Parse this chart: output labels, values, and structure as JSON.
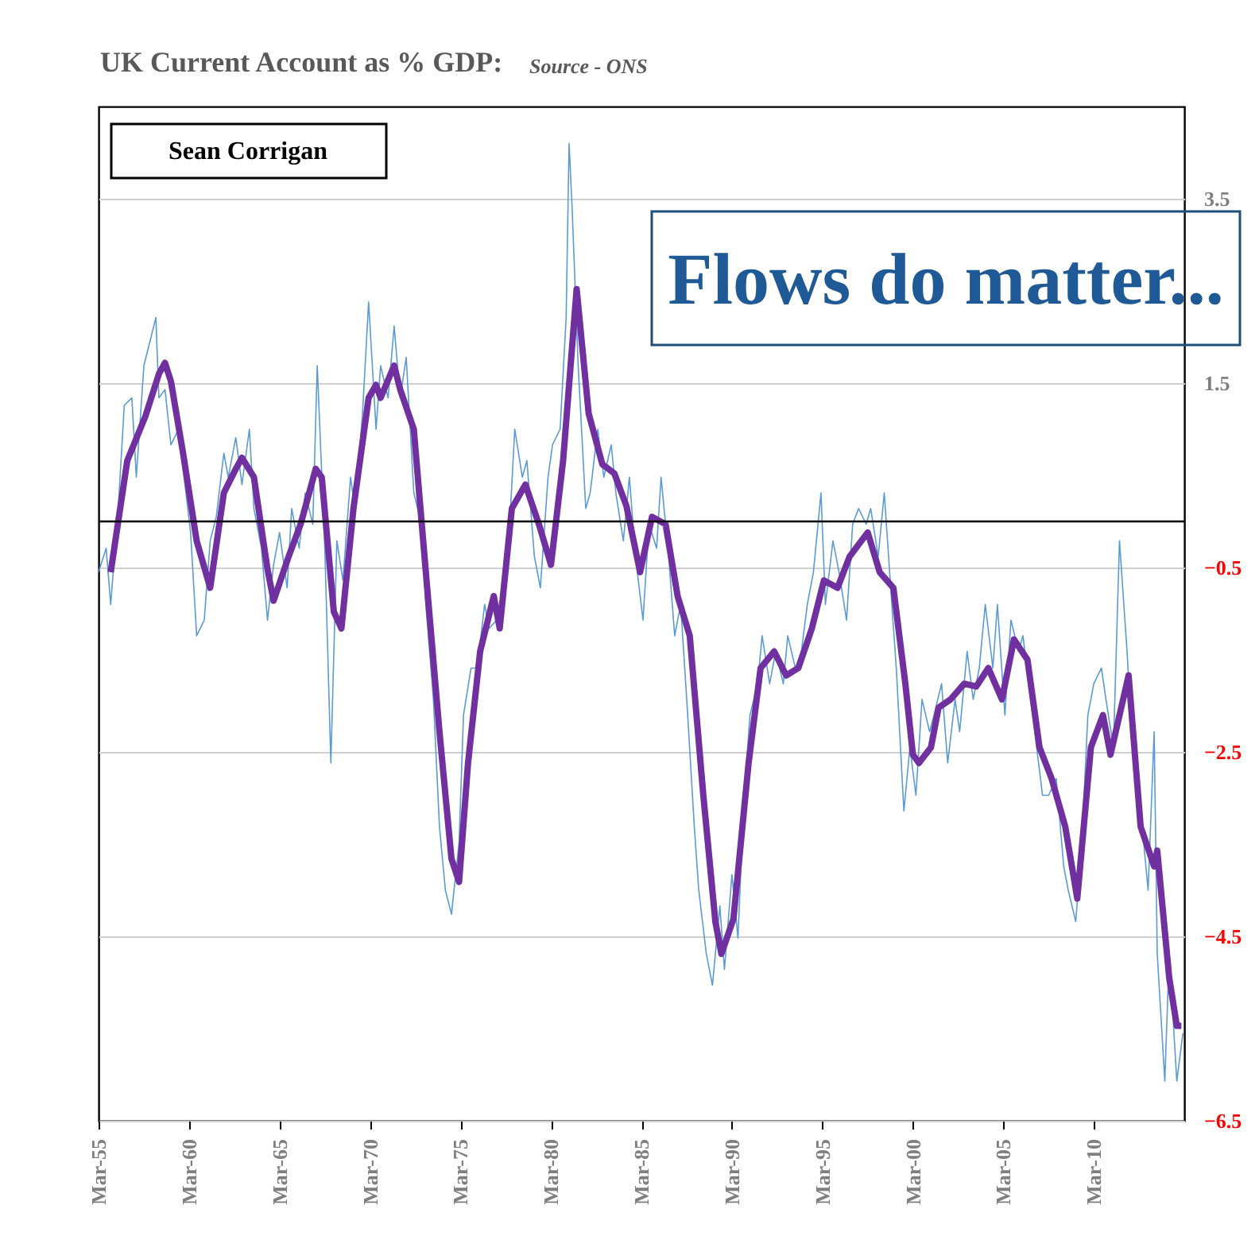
{
  "chart_data": {
    "type": "line",
    "title": "UK Current Account as % GDP:",
    "annotations": [
      "Source - ONS",
      "Sean Corrigan",
      "Flows do matter..."
    ],
    "xlim": [
      "1955-03",
      "2015-03"
    ],
    "xticks": [
      {
        "value": "1955-03",
        "label": "Mar-55"
      },
      {
        "value": "1960-03",
        "label": "Mar-60"
      },
      {
        "value": "1965-03",
        "label": "Mar-65"
      },
      {
        "value": "1970-03",
        "label": "Mar-70"
      },
      {
        "value": "1975-03",
        "label": "Mar-75"
      },
      {
        "value": "1980-03",
        "label": "Mar-80"
      },
      {
        "value": "1985-03",
        "label": "Mar-85"
      },
      {
        "value": "1990-03",
        "label": "Mar-90"
      },
      {
        "value": "1995-03",
        "label": "Mar-95"
      },
      {
        "value": "2000-03",
        "label": "Mar-00"
      },
      {
        "value": "2005-03",
        "label": "Mar-05"
      },
      {
        "value": "2010-03",
        "label": "Mar-10"
      }
    ],
    "ylim": [
      -6.5,
      4.5
    ],
    "yticks": [
      3.5,
      1.5,
      -0.5,
      -2.5,
      -4.5,
      -6.5
    ],
    "grid": "y",
    "ref_lines": [
      {
        "axis": "y",
        "value": 0,
        "color": "#000000"
      }
    ],
    "series": [
      {
        "color": "#5b9bd5",
        "x": [
          "1955-03",
          "1955-08",
          "1955-11",
          "1956-04",
          "1956-08",
          "1957-01",
          "1957-04",
          "1957-09",
          "1958-01",
          "1958-05",
          "1958-07",
          "1958-11",
          "1959-03",
          "1959-08",
          "1959-11",
          "1960-04",
          "1960-08",
          "1961-01",
          "1961-05",
          "1961-09",
          "1962-02",
          "1962-05",
          "1962-10",
          "1963-02",
          "1963-07",
          "1963-10",
          "1964-03",
          "1964-07",
          "1964-11",
          "1965-03",
          "1965-08",
          "1965-11",
          "1966-04",
          "1966-08",
          "1967-01",
          "1967-04",
          "1967-09",
          "1968-01",
          "1968-05",
          "1968-09",
          "1969-02",
          "1969-05",
          "1969-10",
          "1970-02",
          "1970-07",
          "1970-10",
          "1971-03",
          "1971-07",
          "1971-11",
          "1972-03",
          "1972-08",
          "1973-01",
          "1973-04",
          "1973-09",
          "1974-01",
          "1974-05",
          "1974-09",
          "1975-02",
          "1975-05",
          "1975-10",
          "1976-02",
          "1976-07",
          "1976-10",
          "1977-03",
          "1977-07",
          "1977-11",
          "1978-03",
          "1978-08",
          "1978-11",
          "1979-04",
          "1979-08",
          "1980-01",
          "1980-04",
          "1980-09",
          "1981-01",
          "1981-03",
          "1981-05",
          "1981-09",
          "1982-02",
          "1982-05",
          "1982-10",
          "1983-02",
          "1983-07",
          "1983-10",
          "1984-03",
          "1984-07",
          "1984-11",
          "1985-04",
          "1985-08",
          "1986-01",
          "1986-04",
          "1986-09",
          "1987-01",
          "1987-05",
          "1987-09",
          "1988-02",
          "1988-05",
          "1988-10",
          "1989-02",
          "1989-07",
          "1989-10",
          "1990-03",
          "1990-07",
          "1990-11",
          "1991-03",
          "1991-08",
          "1991-11",
          "1992-04",
          "1992-08",
          "1993-01",
          "1993-04",
          "1993-09",
          "1994-01",
          "1994-05",
          "1994-09",
          "1995-02",
          "1995-05",
          "1995-10",
          "1996-02",
          "1996-07",
          "1996-11",
          "1997-03",
          "1997-08",
          "1997-11",
          "1998-04",
          "1998-08",
          "1999-01",
          "1999-04",
          "1999-09",
          "2000-01",
          "2000-05",
          "2000-09",
          "2001-02",
          "2001-05",
          "2001-10",
          "2002-02",
          "2002-07",
          "2002-10",
          "2003-03",
          "2003-07",
          "2003-11",
          "2004-03",
          "2004-08",
          "2004-11",
          "2005-04",
          "2005-08",
          "2006-01",
          "2006-04",
          "2006-09",
          "2007-01",
          "2007-05",
          "2007-09",
          "2008-02",
          "2008-07",
          "2008-10",
          "2009-03",
          "2009-07",
          "2009-11",
          "2010-03",
          "2010-08",
          "2010-11",
          "2011-04",
          "2011-08",
          "2012-01",
          "2012-04",
          "2012-09",
          "2013-01",
          "2013-03",
          "2013-07",
          "2013-09",
          "2014-02",
          "2014-05",
          "2014-10",
          "2015-02"
        ],
        "values": [
          -0.55,
          -0.29,
          -0.9,
          0.14,
          1.26,
          1.34,
          0.48,
          1.69,
          1.95,
          2.21,
          1.34,
          1.43,
          0.83,
          1.0,
          0.57,
          -0.12,
          -1.24,
          -1.07,
          -0.21,
          0.05,
          0.74,
          0.48,
          0.91,
          0.4,
          1.0,
          0.14,
          -0.29,
          -1.07,
          -0.47,
          -0.12,
          -0.72,
          0.14,
          -0.29,
          0.31,
          -0.03,
          1.69,
          -0.29,
          -2.62,
          -0.21,
          -0.64,
          0.48,
          0.14,
          1.17,
          2.38,
          1.0,
          1.69,
          1.34,
          2.12,
          1.34,
          1.78,
          0.31,
          -0.03,
          -0.9,
          -1.93,
          -3.31,
          -4.0,
          -4.26,
          -3.48,
          -2.1,
          -1.59,
          -1.59,
          -0.9,
          -1.16,
          -1.07,
          -0.72,
          -0.21,
          1.0,
          0.48,
          0.66,
          -0.38,
          -0.72,
          0.48,
          0.83,
          1.0,
          2.21,
          4.1,
          3.41,
          1.69,
          0.14,
          0.31,
          1.0,
          0.48,
          0.83,
          0.31,
          -0.21,
          0.48,
          -0.38,
          -1.07,
          -0.03,
          -0.29,
          0.48,
          -0.38,
          -1.24,
          -0.9,
          -1.93,
          -3.31,
          -4.0,
          -4.69,
          -5.03,
          -4.17,
          -4.86,
          -3.83,
          -4.52,
          -2.97,
          -2.1,
          -1.76,
          -1.24,
          -1.76,
          -1.41,
          -1.76,
          -1.24,
          -1.59,
          -1.41,
          -0.9,
          -0.55,
          0.31,
          -0.9,
          -0.21,
          -0.55,
          -1.07,
          -0.03,
          0.14,
          -0.03,
          0.14,
          -0.38,
          0.31,
          -0.9,
          -1.59,
          -3.14,
          -2.45,
          -2.97,
          -1.93,
          -2.28,
          -2.1,
          -1.76,
          -2.62,
          -1.93,
          -2.28,
          -1.41,
          -1.93,
          -1.59,
          -0.9,
          -1.59,
          -0.9,
          -2.1,
          -1.07,
          -1.41,
          -1.24,
          -1.93,
          -2.45,
          -2.97,
          -2.97,
          -2.79,
          -3.74,
          -4.0,
          -4.34,
          -3.48,
          -2.1,
          -1.76,
          -1.59,
          -1.93,
          -2.45,
          -0.21,
          -1.41,
          -2.28,
          -2.97,
          -3.66,
          -4.0,
          -2.28,
          -4.69,
          -6.07,
          -4.69,
          -6.07,
          -5.55
        ]
      },
      {
        "color": "#7030a0",
        "x": [
          "1955-11",
          "1956-10",
          "1957-10",
          "1958-07",
          "1958-11",
          "1959-03",
          "1959-11",
          "1960-08",
          "1961-05",
          "1962-02",
          "1962-10",
          "1963-02",
          "1963-10",
          "1964-07",
          "1964-11",
          "1965-09",
          "1966-05",
          "1967-03",
          "1967-07",
          "1968-03",
          "1968-08",
          "1969-04",
          "1970-02",
          "1970-07",
          "1970-10",
          "1971-07",
          "1971-11",
          "1972-08",
          "1973-04",
          "1974-01",
          "1974-09",
          "1975-02",
          "1975-08",
          "1976-04",
          "1977-01",
          "1977-05",
          "1978-01",
          "1978-10",
          "1979-07",
          "1980-03",
          "1980-11",
          "1981-08",
          "1982-04",
          "1983-01",
          "1983-09",
          "1984-05",
          "1985-02",
          "1985-10",
          "1986-07",
          "1987-03",
          "1987-11",
          "1988-08",
          "1989-04",
          "1989-08",
          "1990-04",
          "1991-02",
          "1991-10",
          "1992-07",
          "1993-03",
          "1993-11",
          "1994-08",
          "1995-04",
          "1996-01",
          "1996-09",
          "1997-09",
          "1998-05",
          "1999-02",
          "1999-10",
          "2000-03",
          "2000-07",
          "2001-03",
          "2001-08",
          "2002-04",
          "2003-01",
          "2003-09",
          "2004-05",
          "2005-02",
          "2005-10",
          "2006-07",
          "2007-03",
          "2007-11",
          "2008-08",
          "2009-04",
          "2010-01",
          "2010-09",
          "2011-02",
          "2012-02",
          "2012-10",
          "2013-07",
          "2013-09",
          "2014-05",
          "2014-10",
          "2015-01"
        ],
        "values": [
          -0.55,
          0.66,
          1.14,
          1.6,
          1.72,
          1.52,
          0.74,
          -0.21,
          -0.72,
          0.31,
          0.57,
          0.69,
          0.48,
          -0.52,
          -0.86,
          -0.38,
          -0.03,
          0.57,
          0.48,
          -0.98,
          -1.16,
          0.14,
          1.34,
          1.48,
          1.34,
          1.69,
          1.43,
          1.0,
          -0.55,
          -2.28,
          -3.66,
          -3.91,
          -2.62,
          -1.41,
          -0.81,
          -1.16,
          0.14,
          0.4,
          -0.03,
          -0.47,
          0.66,
          2.52,
          1.17,
          0.62,
          0.52,
          0.17,
          -0.55,
          0.05,
          -0.03,
          -0.81,
          -1.24,
          -2.97,
          -4.34,
          -4.69,
          -4.31,
          -2.62,
          -1.59,
          -1.41,
          -1.67,
          -1.59,
          -1.16,
          -0.64,
          -0.72,
          -0.38,
          -0.12,
          -0.55,
          -0.72,
          -1.76,
          -2.53,
          -2.62,
          -2.45,
          -2.02,
          -1.93,
          -1.76,
          -1.79,
          -1.59,
          -1.93,
          -1.28,
          -1.5,
          -2.45,
          -2.79,
          -3.31,
          -4.09,
          -2.45,
          -2.1,
          -2.53,
          -1.67,
          -3.31,
          -3.74,
          -3.57,
          -4.95,
          -5.47,
          -5.47
        ]
      }
    ]
  }
}
